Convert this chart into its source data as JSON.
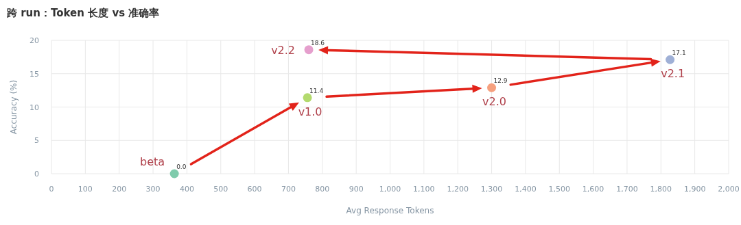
{
  "chart_data": {
    "type": "scatter",
    "title": "跨 run：Token 长度 vs 准确率",
    "xlabel": "Avg Response Tokens",
    "ylabel": "Accuracy (%)",
    "x": [
      363,
      756,
      1300,
      1827,
      760
    ],
    "values": [
      0.0,
      11.4,
      12.9,
      17.1,
      18.6
    ],
    "colors": [
      "#7fcbac",
      "#b3da6e",
      "#f6a07e",
      "#9fb0d6",
      "#e59fcd"
    ],
    "value_labels": [
      "0.0",
      "11.4",
      "12.9",
      "17.1",
      "18.6"
    ],
    "annotations": [
      {
        "text": "beta",
        "x": 363,
        "y": 0.0
      },
      {
        "text": "v1.0",
        "x": 756,
        "y": 11.4
      },
      {
        "text": "v2.0",
        "x": 1300,
        "y": 12.9
      },
      {
        "text": "v2.1",
        "x": 1827,
        "y": 17.1
      },
      {
        "text": "v2.2",
        "x": 760,
        "y": 18.6
      }
    ],
    "xlim": [
      0,
      2000
    ],
    "ylim": [
      0,
      20
    ],
    "xticks": [
      0,
      100,
      200,
      300,
      400,
      500,
      600,
      700,
      800,
      900,
      {
        "value": 1000,
        "label": "1,000"
      },
      {
        "value": 1100,
        "label": "1,100"
      },
      {
        "value": 1200,
        "label": "1,200"
      },
      {
        "value": 1300,
        "label": "1,300"
      },
      {
        "value": 1400,
        "label": "1,400"
      },
      {
        "value": 1500,
        "label": "1,500"
      },
      {
        "value": 1600,
        "label": "1,600"
      },
      {
        "value": 1700,
        "label": "1,700"
      },
      {
        "value": 1800,
        "label": "1,800"
      },
      {
        "value": 1900,
        "label": "1,900"
      },
      {
        "value": 2000,
        "label": "2,000"
      }
    ],
    "yticks": [
      0,
      5,
      10,
      15,
      20
    ],
    "grid": true,
    "marker": "circle"
  }
}
